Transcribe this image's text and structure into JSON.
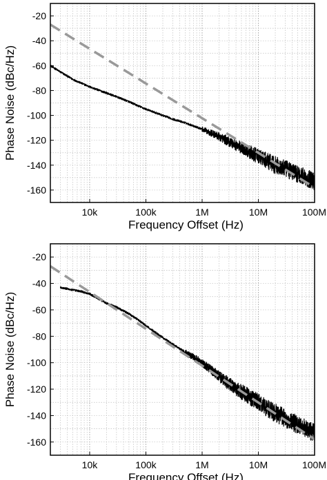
{
  "chart_data": [
    {
      "type": "line",
      "title": "",
      "xlabel": "Frequency Offset (Hz)",
      "ylabel": "Phase Noise (dBc/Hz)",
      "xscale": "log",
      "xlim": [
        2000,
        100000000
      ],
      "ylim": [
        -170,
        -10
      ],
      "grid": true,
      "xticks": [
        10000,
        100000,
        1000000,
        10000000,
        100000000
      ],
      "xtick_labels": [
        "10k",
        "100k",
        "1M",
        "10M",
        "100M"
      ],
      "yticks": [
        -20,
        -40,
        -60,
        -80,
        -100,
        -120,
        -140,
        -160
      ],
      "ytick_labels": [
        "-20",
        "-40",
        "-60",
        "-80",
        "-100",
        "-120",
        "-140",
        "-160"
      ],
      "series": [
        {
          "style": "solid",
          "color": "#000000",
          "x": [
            2000,
            3000,
            5000,
            7000,
            10000,
            15000,
            20000,
            30000,
            50000,
            70000,
            100000,
            200000,
            300000,
            500000,
            1000000,
            2000000,
            3000000,
            5000000,
            10000000,
            20000000,
            30000000,
            50000000,
            100000000
          ],
          "y": [
            -60,
            -65,
            -71,
            -74,
            -77,
            -80,
            -82,
            -85,
            -89,
            -92,
            -95,
            -100,
            -103,
            -106,
            -111,
            -117,
            -121,
            -126,
            -133,
            -140,
            -143,
            -147,
            -153
          ],
          "noise_band": [
            [
              1000000,
              2
            ],
            [
              5000000,
              5
            ],
            [
              20000000,
              7
            ],
            [
              100000000,
              7
            ]
          ]
        },
        {
          "style": "dashed",
          "color": "#999999",
          "x": [
            2000,
            100000000
          ],
          "y": [
            -27,
            -158
          ]
        }
      ]
    },
    {
      "type": "line",
      "title": "",
      "xlabel": "Frequency Offset (Hz)",
      "ylabel": "Phase Noise (dBc/Hz)",
      "xscale": "log",
      "xlim": [
        2000,
        100000000
      ],
      "ylim": [
        -170,
        -10
      ],
      "grid": true,
      "xticks": [
        10000,
        100000,
        1000000,
        10000000,
        100000000
      ],
      "xtick_labels": [
        "10k",
        "100k",
        "1M",
        "10M",
        "100M"
      ],
      "yticks": [
        -20,
        -40,
        -60,
        -80,
        -100,
        -120,
        -140,
        -160
      ],
      "ytick_labels": [
        "-20",
        "-40",
        "-60",
        "-80",
        "-100",
        "-120",
        "-140",
        "-160"
      ],
      "series": [
        {
          "style": "solid",
          "color": "#000000",
          "x": [
            3000,
            5000,
            7000,
            10000,
            15000,
            20000,
            30000,
            50000,
            70000,
            100000,
            200000,
            300000,
            500000,
            1000000,
            2000000,
            3000000,
            5000000,
            10000000,
            20000000,
            30000000,
            50000000,
            100000000
          ],
          "y": [
            -43,
            -45,
            -46,
            -48,
            -52,
            -55,
            -58,
            -63,
            -67,
            -72,
            -81,
            -86,
            -92,
            -100,
            -110,
            -116,
            -122,
            -130,
            -138,
            -142,
            -147,
            -153
          ],
          "noise_band": [
            [
              500000,
              2
            ],
            [
              1000000,
              3
            ],
            [
              5000000,
              6
            ],
            [
              20000000,
              7
            ],
            [
              100000000,
              7
            ]
          ]
        },
        {
          "style": "dashed",
          "color": "#999999",
          "x": [
            2000,
            100000000
          ],
          "y": [
            -27,
            -158
          ]
        }
      ]
    }
  ]
}
